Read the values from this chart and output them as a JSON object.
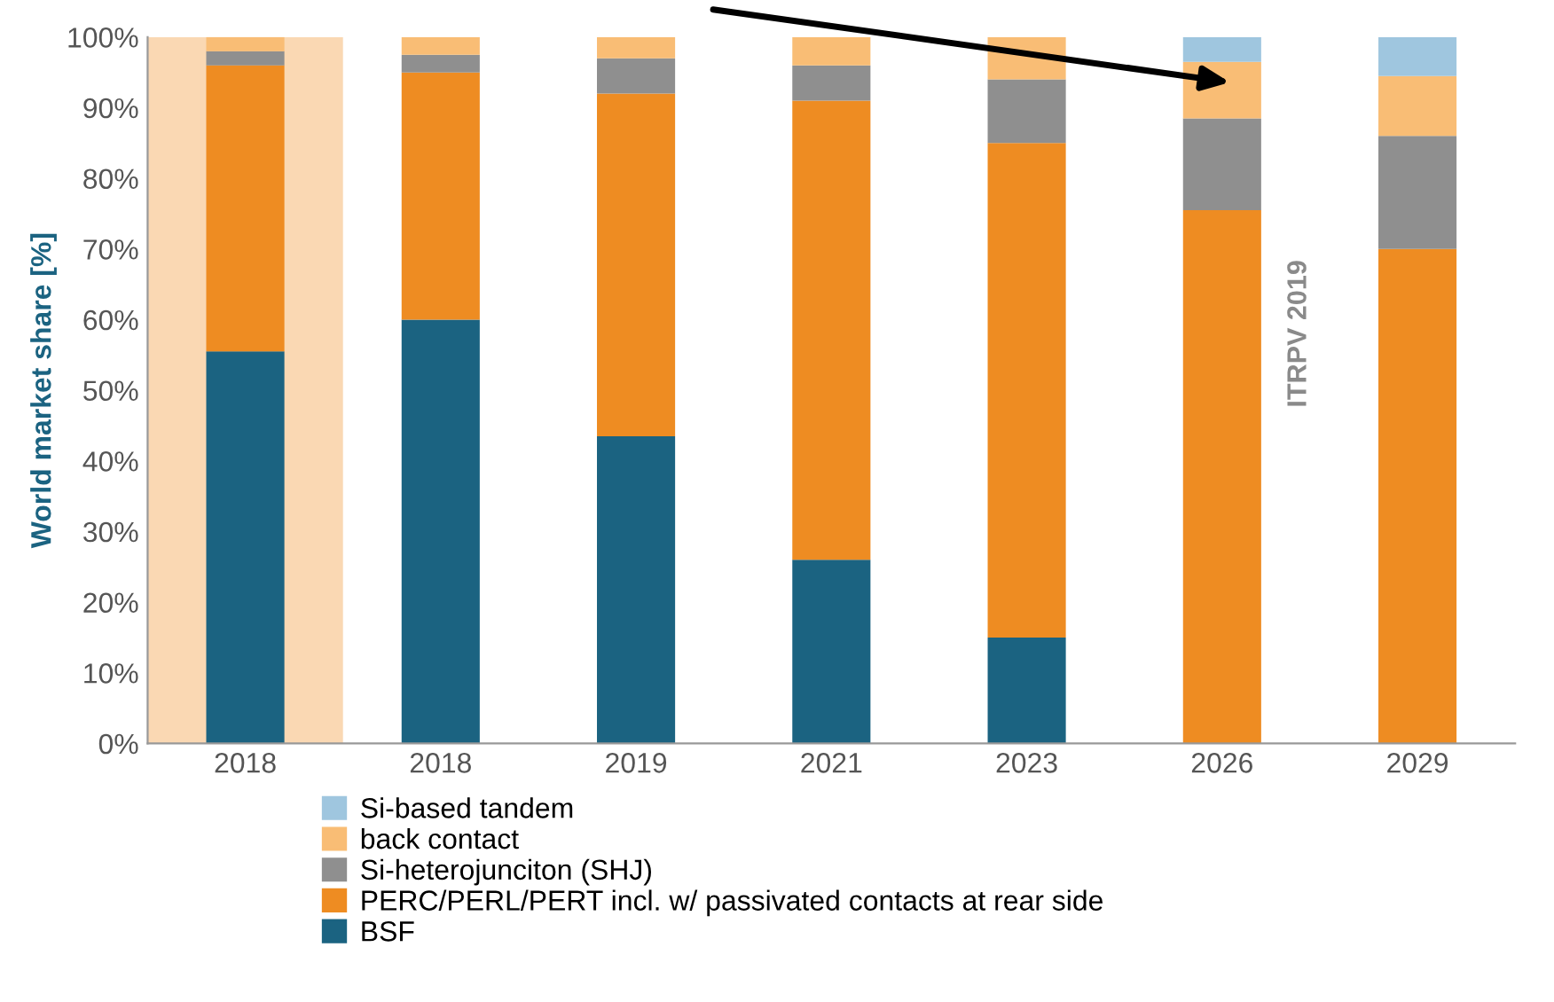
{
  "chart_data": {
    "type": "bar",
    "stacked": true,
    "ylabel": "World market share [%]",
    "categories": [
      "2018",
      "2018",
      "2019",
      "2021",
      "2023",
      "2026",
      "2029"
    ],
    "series": [
      {
        "name": "BSF",
        "color": "#1b6381",
        "values": [
          55.5,
          60,
          43.5,
          26,
          15,
          0,
          0
        ]
      },
      {
        "name": "PERC/PERL/PERT incl. w/ passivated contacts at rear side",
        "color": "#ee8c22",
        "values": [
          40.5,
          35,
          48.5,
          65,
          70,
          75.5,
          70
        ]
      },
      {
        "name": "Si-heterojunciton (SHJ)",
        "color": "#8f8f8f",
        "values": [
          2,
          2.5,
          5,
          5,
          9,
          13,
          16
        ]
      },
      {
        "name": "back contact",
        "color": "#f9bd75",
        "values": [
          2,
          2.5,
          3,
          4,
          6,
          8,
          8.5
        ]
      },
      {
        "name": "Si-based tandem",
        "color": "#9fc6df",
        "values": [
          0,
          0,
          0,
          0,
          0,
          3.5,
          5.5
        ]
      }
    ],
    "ylim": [
      0,
      100
    ],
    "yticks": [
      {
        "value": 0,
        "label": "0%"
      },
      {
        "value": 10,
        "label": "10%"
      },
      {
        "value": 20,
        "label": "20%"
      },
      {
        "value": 30,
        "label": "30%"
      },
      {
        "value": 40,
        "label": "40%"
      },
      {
        "value": 50,
        "label": "50%"
      },
      {
        "value": 60,
        "label": "60%"
      },
      {
        "value": 70,
        "label": "70%"
      },
      {
        "value": 80,
        "label": "80%"
      },
      {
        "value": 90,
        "label": "90%"
      },
      {
        "value": 100,
        "label": "100%"
      }
    ],
    "bands": [
      {
        "axis": "x",
        "from": "2018",
        "to": "2018",
        "color": "#fad8b3"
      }
    ],
    "annotations": [
      "ITRPV 2019"
    ],
    "grid": false,
    "legend": "bottom"
  }
}
